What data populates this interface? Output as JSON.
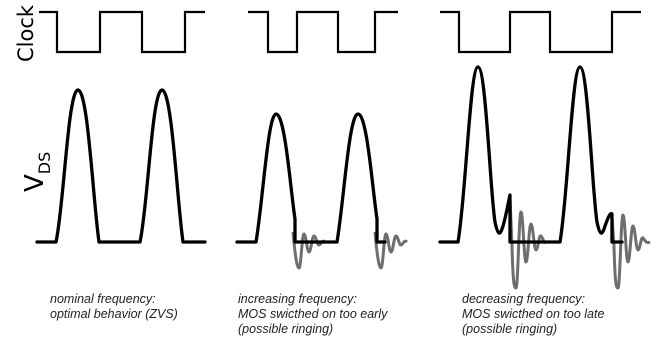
{
  "labels": {
    "clock": "Clock",
    "vds_main": "V",
    "vds_sub": "DS"
  },
  "panels": [
    {
      "id": "nominal",
      "caption": [
        "nominal frequency:",
        "optimal behavior (ZVS)"
      ]
    },
    {
      "id": "increasing",
      "caption": [
        "increasing frequency:",
        "MOS swicthed on too early",
        "(possible ringing)"
      ]
    },
    {
      "id": "decreasing",
      "caption": [
        "decreasing frequency:",
        "MOS swicthed on too late",
        "(possible ringing)"
      ]
    }
  ],
  "colors": {
    "waveform": "#000000",
    "ringing": "#6e6e6e"
  }
}
